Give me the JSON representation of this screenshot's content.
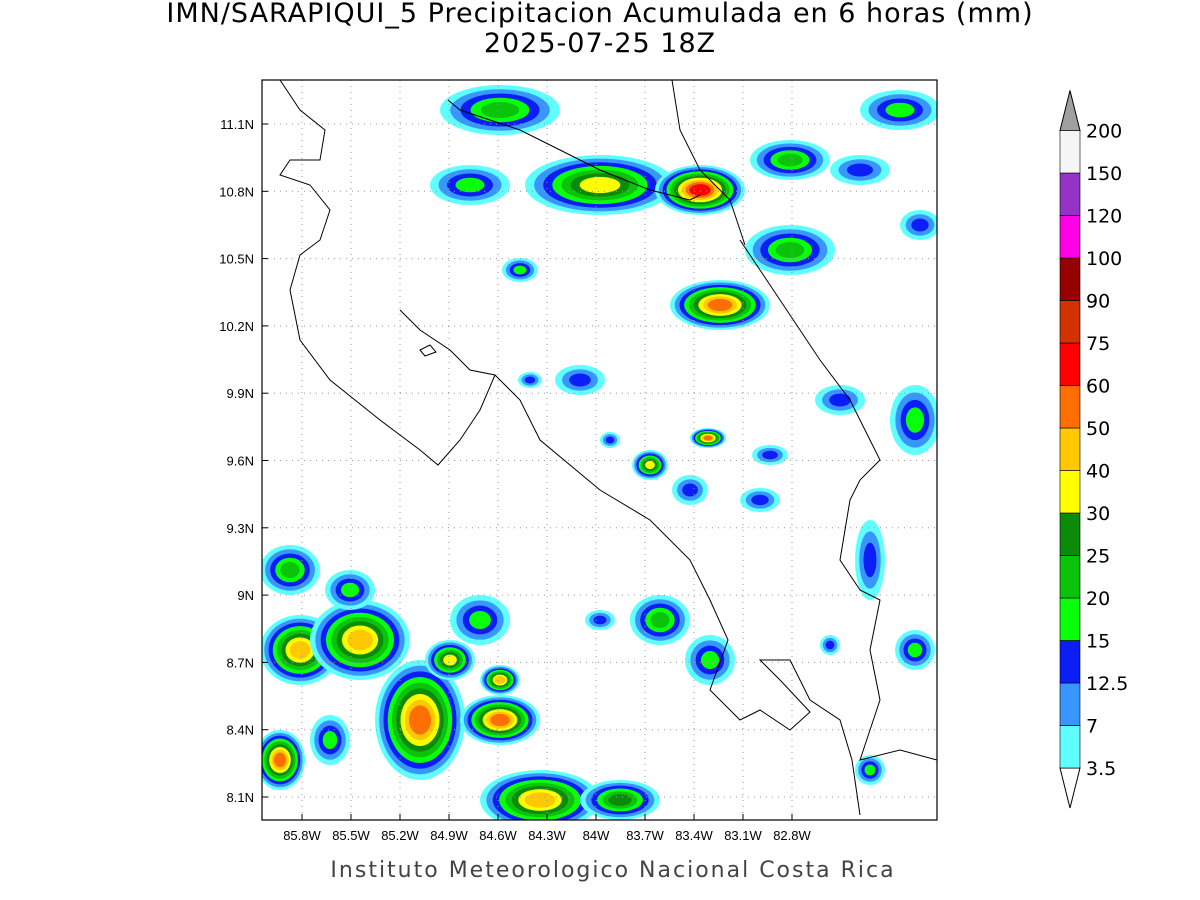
{
  "title": "IMN/SARAPIQUI_5 Precipitacion Acumulada en 6 horas (mm)",
  "subtitle": "2025-07-25 18Z",
  "map": {
    "lat_labels": [
      "11.1N",
      "10.8N",
      "10.5N",
      "10.2N",
      "9.9N",
      "9.6N",
      "9.3N",
      "9N",
      "8.7N",
      "8.4N",
      "8.1N"
    ],
    "lon_labels": [
      "85.8W",
      "85.5W",
      "85.2W",
      "84.9W",
      "84.6W",
      "84.3W",
      "84W",
      "83.7W",
      "83.4W",
      "83.1W",
      "82.8W"
    ]
  },
  "colorbar": {
    "levels": [
      3.5,
      7,
      12.5,
      15,
      20,
      25,
      30,
      40,
      50,
      60,
      75,
      90,
      100,
      120,
      150,
      200
    ],
    "colors": [
      "#5fffff",
      "#3a96ff",
      "#0a1ef5",
      "#0aff0a",
      "#0ac30a",
      "#0a8c0a",
      "#ffff00",
      "#ffc800",
      "#ff6e00",
      "#ff0000",
      "#d23200",
      "#960000",
      "#ff00e6",
      "#9632c8",
      "#f5f5f5"
    ],
    "under_color": "#ffffff",
    "over_color": "#a0a0a0"
  },
  "footer": "Instituto Meteorologico Nacional Costa Rica"
}
